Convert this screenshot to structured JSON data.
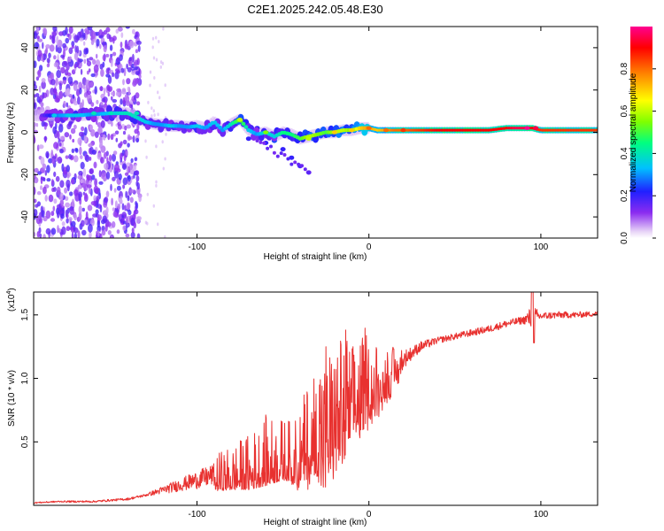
{
  "title": "C2E1.2025.242.05.48.E30",
  "chart_data": [
    {
      "type": "heatmap",
      "title": "C2E1.2025.242.05.48.E30",
      "xlabel": "Height of straight line (km)",
      "ylabel": "Frequency (Hz)",
      "xlim": [
        -195,
        133
      ],
      "ylim": [
        -50,
        50
      ],
      "xticks": [
        -100,
        0,
        100
      ],
      "yticks": [
        -40,
        -20,
        0,
        20,
        40
      ],
      "colorbar": {
        "label": "Normalized spectral amplitude",
        "range": [
          0,
          1
        ],
        "ticks": [
          "0.0",
          "0.2",
          "0.4",
          "0.6",
          "0.8"
        ],
        "tick_values": [
          0.0,
          0.2,
          0.4,
          0.6,
          0.8
        ]
      },
      "main_ridge": [
        [
          -190,
          8,
          0.15
        ],
        [
          -180,
          8,
          0.3
        ],
        [
          -170,
          8,
          0.35
        ],
        [
          -160,
          8.5,
          0.3
        ],
        [
          -150,
          9,
          0.35
        ],
        [
          -140,
          9,
          0.4
        ],
        [
          -130,
          5,
          0.35
        ],
        [
          -125,
          4,
          0.3
        ],
        [
          -120,
          3.5,
          0.3
        ],
        [
          -115,
          3,
          0.35
        ],
        [
          -110,
          3,
          0.3
        ],
        [
          -105,
          2.5,
          0.3
        ],
        [
          -100,
          3,
          0.35
        ],
        [
          -95,
          2,
          0.3
        ],
        [
          -90,
          5,
          0.35
        ],
        [
          -85,
          1,
          0.3
        ],
        [
          -80,
          4,
          0.4
        ],
        [
          -75,
          6,
          0.55
        ],
        [
          -70,
          1,
          0.35
        ],
        [
          -65,
          -1,
          0.3
        ],
        [
          -60,
          0,
          0.4
        ],
        [
          -55,
          -2,
          0.35
        ],
        [
          -50,
          0,
          0.45
        ],
        [
          -45,
          -1,
          0.45
        ],
        [
          -40,
          -3,
          0.5
        ],
        [
          -35,
          -2,
          0.6
        ],
        [
          -30,
          -1,
          0.55
        ],
        [
          -25,
          0,
          0.5
        ],
        [
          -20,
          0,
          0.6
        ],
        [
          -15,
          1,
          0.6
        ],
        [
          -10,
          1,
          0.55
        ],
        [
          -5,
          2,
          0.7
        ],
        [
          0,
          2,
          0.75
        ],
        [
          5,
          1,
          0.7
        ],
        [
          10,
          1,
          0.75
        ],
        [
          15,
          1,
          0.8
        ],
        [
          20,
          1,
          0.8
        ],
        [
          30,
          1,
          0.85
        ],
        [
          40,
          1,
          0.9
        ],
        [
          50,
          1,
          0.9
        ],
        [
          60,
          1,
          0.9
        ],
        [
          70,
          1,
          0.9
        ],
        [
          80,
          2,
          0.9
        ],
        [
          85,
          2,
          0.95
        ],
        [
          90,
          2,
          0.95
        ],
        [
          95,
          2,
          0.9
        ],
        [
          100,
          1,
          0.85
        ],
        [
          110,
          1,
          0.85
        ],
        [
          120,
          1,
          0.85
        ],
        [
          130,
          1,
          0.85
        ]
      ],
      "secondary_branch": [
        [
          -65,
          2,
          0.2
        ],
        [
          -55,
          -4,
          0.25
        ],
        [
          -50,
          -8,
          0.2
        ],
        [
          -45,
          -12,
          0.2
        ],
        [
          -40,
          -16,
          0.18
        ],
        [
          -35,
          -19,
          0.15
        ],
        [
          -60,
          -5,
          0.2
        ],
        [
          -70,
          -3,
          0.2
        ]
      ]
    },
    {
      "type": "line",
      "xlabel": "Height of straight line (km)",
      "ylabel": "SNR (10 * v/v)",
      "y_multiplier": "(x10",
      "y_multiplier_exp": "4",
      "y_multiplier_close": ")",
      "xlim": [
        -195,
        133
      ],
      "ylim": [
        0,
        1.68
      ],
      "xticks": [
        -100,
        0,
        100
      ],
      "yticks": [
        0.5,
        1.0,
        1.5
      ],
      "ytick_labels": [
        "0.5",
        "1.0",
        "1.5"
      ],
      "color": "#e8312f",
      "envelope": [
        [
          -195,
          0.02
        ],
        [
          -180,
          0.03
        ],
        [
          -160,
          0.03
        ],
        [
          -140,
          0.05
        ],
        [
          -130,
          0.08
        ],
        [
          -120,
          0.12
        ],
        [
          -110,
          0.16
        ],
        [
          -100,
          0.2
        ],
        [
          -90,
          0.24
        ],
        [
          -80,
          0.28
        ],
        [
          -70,
          0.32
        ],
        [
          -60,
          0.4
        ],
        [
          -50,
          0.42
        ],
        [
          -45,
          0.4
        ],
        [
          -40,
          0.45
        ],
        [
          -35,
          0.55
        ],
        [
          -30,
          0.65
        ],
        [
          -25,
          0.75
        ],
        [
          -20,
          0.82
        ],
        [
          -15,
          0.88
        ],
        [
          -10,
          0.92
        ],
        [
          -5,
          0.95
        ],
        [
          0,
          0.97
        ],
        [
          5,
          0.99
        ],
        [
          10,
          1.02
        ],
        [
          15,
          1.08
        ],
        [
          20,
          1.15
        ],
        [
          25,
          1.2
        ],
        [
          30,
          1.25
        ],
        [
          40,
          1.3
        ],
        [
          50,
          1.33
        ],
        [
          60,
          1.36
        ],
        [
          70,
          1.39
        ],
        [
          80,
          1.43
        ],
        [
          90,
          1.46
        ],
        [
          95,
          1.48
        ],
        [
          100,
          1.49
        ],
        [
          110,
          1.5
        ],
        [
          120,
          1.5
        ],
        [
          133,
          1.51
        ]
      ],
      "noise_amplitude": [
        [
          -195,
          0.01
        ],
        [
          -130,
          0.02
        ],
        [
          -110,
          0.1
        ],
        [
          -90,
          0.18
        ],
        [
          -75,
          0.25
        ],
        [
          -60,
          0.35
        ],
        [
          -45,
          0.3
        ],
        [
          -35,
          0.55
        ],
        [
          -25,
          0.7
        ],
        [
          -15,
          0.7
        ],
        [
          -5,
          0.5
        ],
        [
          5,
          0.35
        ],
        [
          15,
          0.2
        ],
        [
          25,
          0.1
        ],
        [
          40,
          0.05
        ],
        [
          90,
          0.06
        ],
        [
          95,
          0.2
        ],
        [
          100,
          0.06
        ],
        [
          133,
          0.04
        ]
      ]
    }
  ]
}
